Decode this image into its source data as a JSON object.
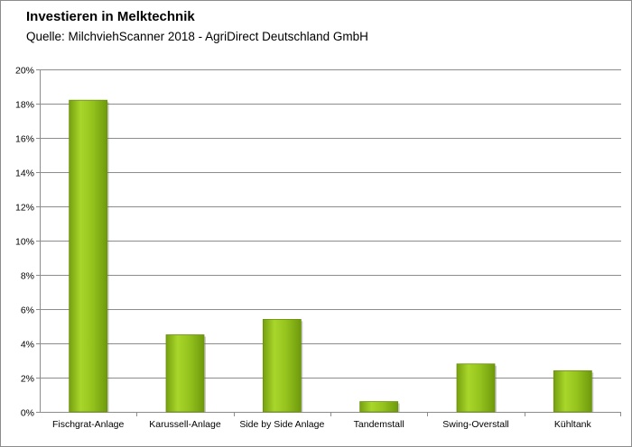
{
  "chart_data": {
    "type": "bar",
    "title": "Investieren in Melktechnik",
    "subtitle": "Quelle: MilchviehScanner 2018 - AgriDirect Deutschland GmbH",
    "categories": [
      "Fischgrat-Anlage",
      "Karussell-Anlage",
      "Side by Side Anlage",
      "Tandemstall",
      "Swing-Overstall",
      "Kühltank"
    ],
    "values": [
      18.2,
      4.5,
      5.4,
      0.6,
      2.8,
      2.4
    ],
    "ylim": [
      0,
      20
    ],
    "ytick_step": 2,
    "ytick_suffix": "%",
    "grid": true,
    "legend": "none",
    "bar_color": "#92c01c"
  }
}
